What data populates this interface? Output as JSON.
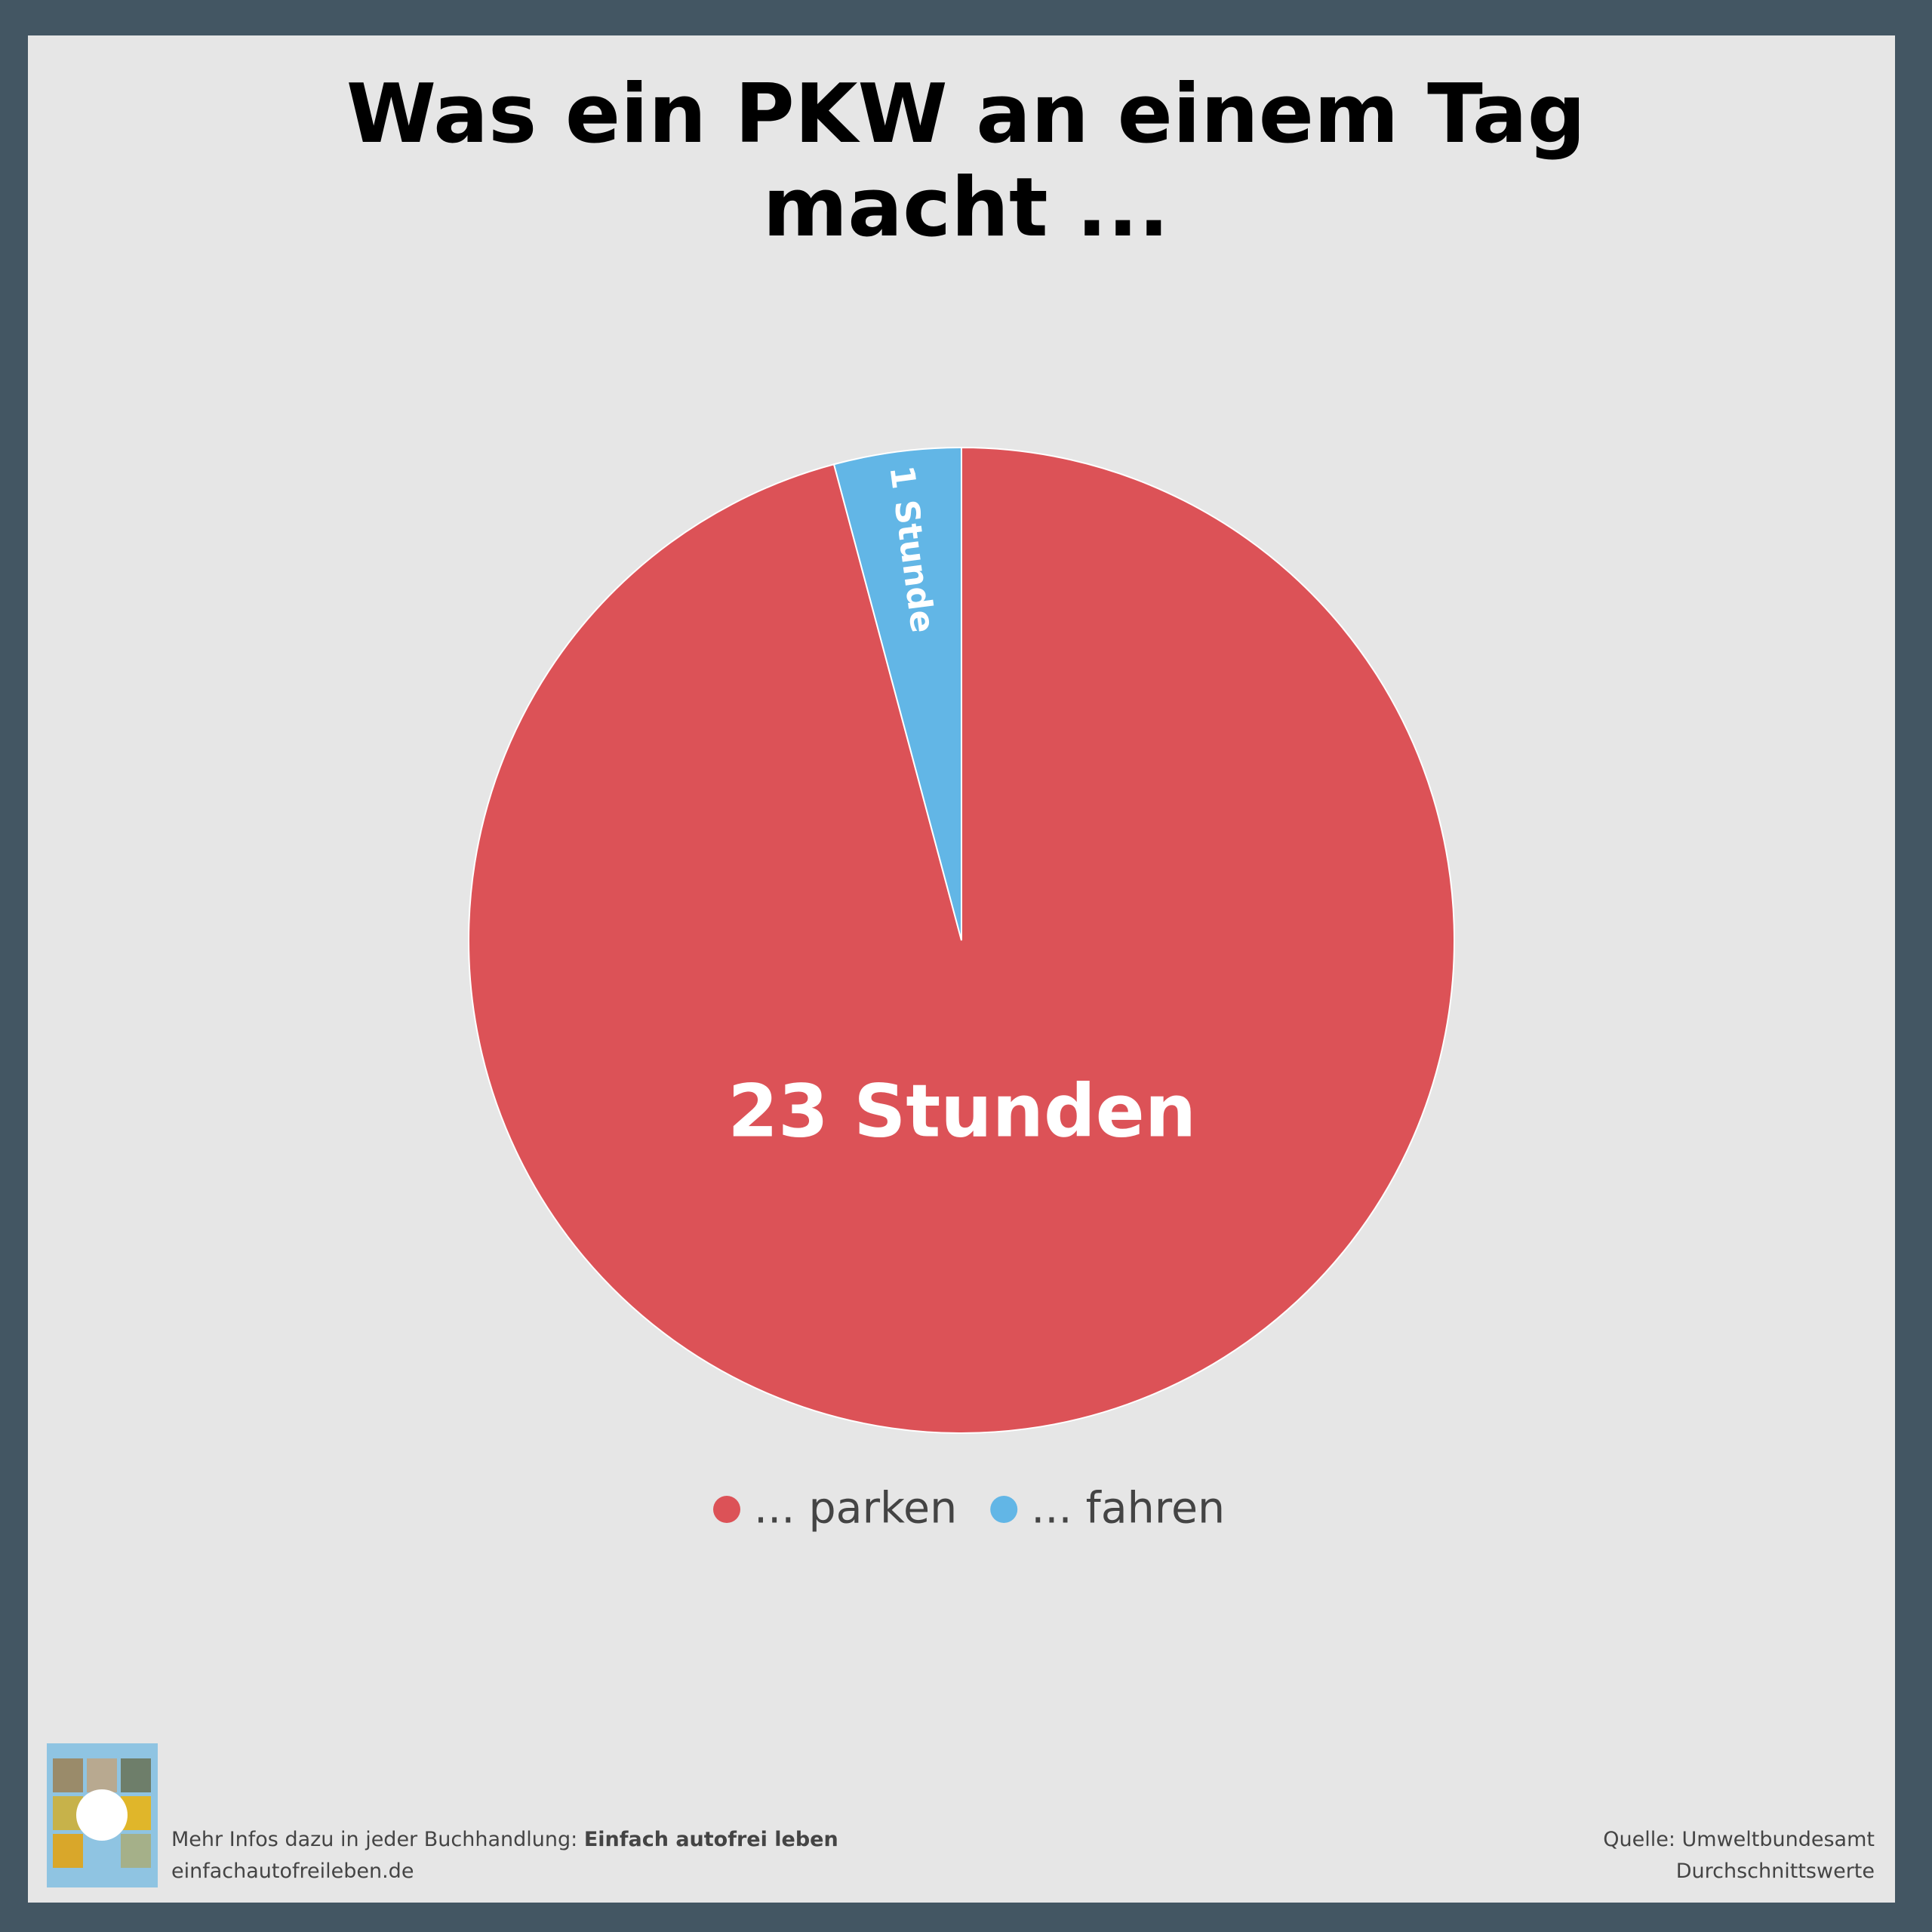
{
  "chart_data": {
    "type": "pie",
    "title": "Was ein PKW an einem Tag macht ...",
    "categories": [
      "... parken",
      "... fahren"
    ],
    "values": [
      23,
      1
    ],
    "value_labels": [
      "23 Stunden",
      "1 Stunde"
    ],
    "colors": [
      "#dc5257",
      "#62b6e6"
    ]
  },
  "footer": {
    "info_text": "Mehr Infos dazu in jeder Buchhandlung:",
    "book_title": "Einfach autofrei leben",
    "website": "einfachautofreileben.de",
    "source": "Quelle: Umweltbundesamt",
    "note": "Durchschnittswerte"
  }
}
